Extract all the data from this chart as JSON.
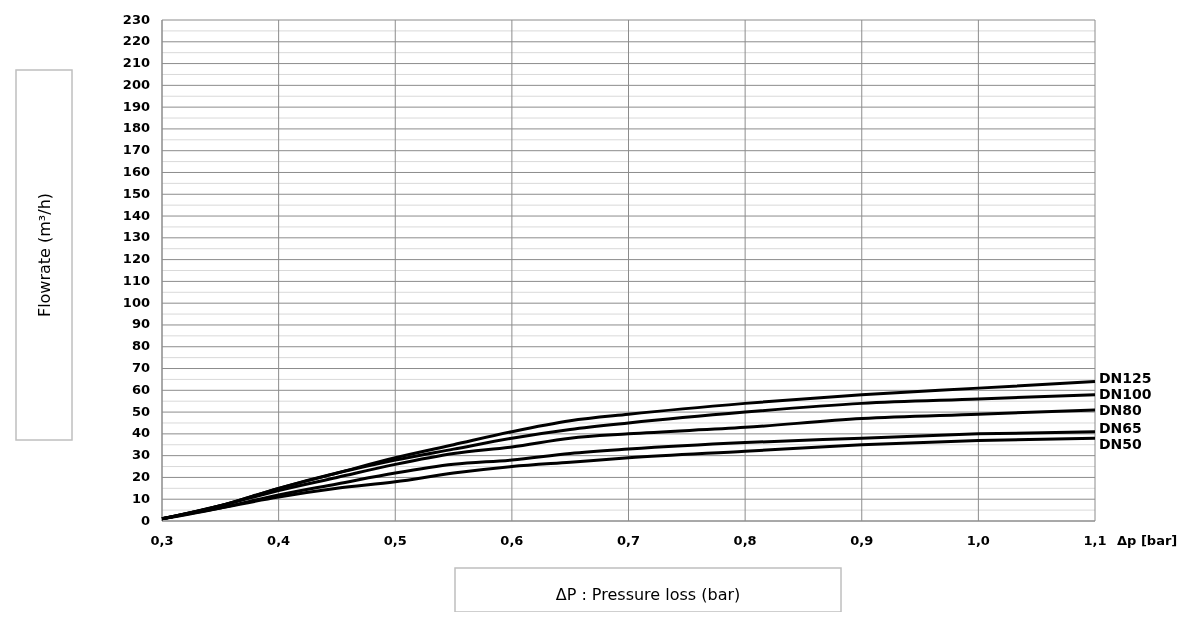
{
  "chart_data": {
    "type": "line",
    "xlabel": "ΔP : Pressure loss (bar)",
    "ylabel": "Flowrate (m³/h)",
    "annotations": [
      "Δp [bar]"
    ],
    "x": [
      0.3,
      0.35,
      0.4,
      0.45,
      0.5,
      0.55,
      0.6,
      0.65,
      0.7,
      0.8,
      0.9,
      1.0,
      1.1
    ],
    "series": [
      {
        "name": "DN125",
        "color": "#000000",
        "values": [
          1,
          7,
          15,
          22,
          29,
          35,
          41,
          46,
          49,
          54,
          58,
          61,
          64
        ]
      },
      {
        "name": "DN100",
        "color": "#000000",
        "values": [
          1,
          7,
          15,
          22,
          28,
          33,
          38,
          42,
          45,
          50,
          54,
          56,
          58
        ]
      },
      {
        "name": "DN80",
        "color": "#000000",
        "values": [
          1,
          7,
          14,
          20,
          26,
          31,
          34,
          38,
          40,
          43,
          47,
          49,
          51
        ]
      },
      {
        "name": "DN65",
        "color": "#000000",
        "values": [
          1,
          6,
          12,
          17,
          22,
          26,
          28,
          31,
          33,
          36,
          38,
          40,
          41
        ]
      },
      {
        "name": "DN50",
        "color": "#000000",
        "values": [
          1,
          6,
          11,
          15,
          18,
          22,
          25,
          27,
          29,
          32,
          35,
          37,
          38
        ]
      }
    ],
    "xlim": [
      0.3,
      1.1
    ],
    "xticks": [
      {
        "value": 0.3,
        "label": "0,3"
      },
      {
        "value": 0.4,
        "label": "0,4"
      },
      {
        "value": 0.5,
        "label": "0,5"
      },
      {
        "value": 0.6,
        "label": "0,6"
      },
      {
        "value": 0.7,
        "label": "0,7"
      },
      {
        "value": 0.8,
        "label": "0,8"
      },
      {
        "value": 0.9,
        "label": "0,9"
      },
      {
        "value": 1.0,
        "label": "1,0"
      },
      {
        "value": 1.1,
        "label": "1,1"
      }
    ],
    "ylim": [
      0,
      230
    ],
    "yticks": [
      0,
      {
        "value": 5,
        "label": null
      },
      10,
      {
        "value": 15,
        "label": null
      },
      20,
      {
        "value": 25,
        "label": null
      },
      30,
      {
        "value": 35,
        "label": null
      },
      40,
      {
        "value": 45,
        "label": null
      },
      50,
      {
        "value": 55,
        "label": null
      },
      60,
      {
        "value": 65,
        "label": null
      },
      70,
      {
        "value": 75,
        "label": null
      },
      80,
      {
        "value": 85,
        "label": null
      },
      90,
      {
        "value": 95,
        "label": null
      },
      100,
      {
        "value": 105,
        "label": null
      },
      110,
      {
        "value": 115,
        "label": null
      },
      120,
      {
        "value": 125,
        "label": null
      },
      130,
      {
        "value": 135,
        "label": null
      },
      140,
      {
        "value": 145,
        "label": null
      },
      150,
      {
        "value": 155,
        "label": null
      },
      160,
      {
        "value": 165,
        "label": null
      },
      170,
      {
        "value": 175,
        "label": null
      },
      180,
      {
        "value": 185,
        "label": null
      },
      190,
      {
        "value": 195,
        "label": null
      },
      200,
      {
        "value": 205,
        "label": null
      },
      210,
      {
        "value": 215,
        "label": null
      },
      220,
      {
        "value": 225,
        "label": null
      },
      230
    ],
    "grid": true,
    "marker": "none",
    "line_style": "solid"
  }
}
